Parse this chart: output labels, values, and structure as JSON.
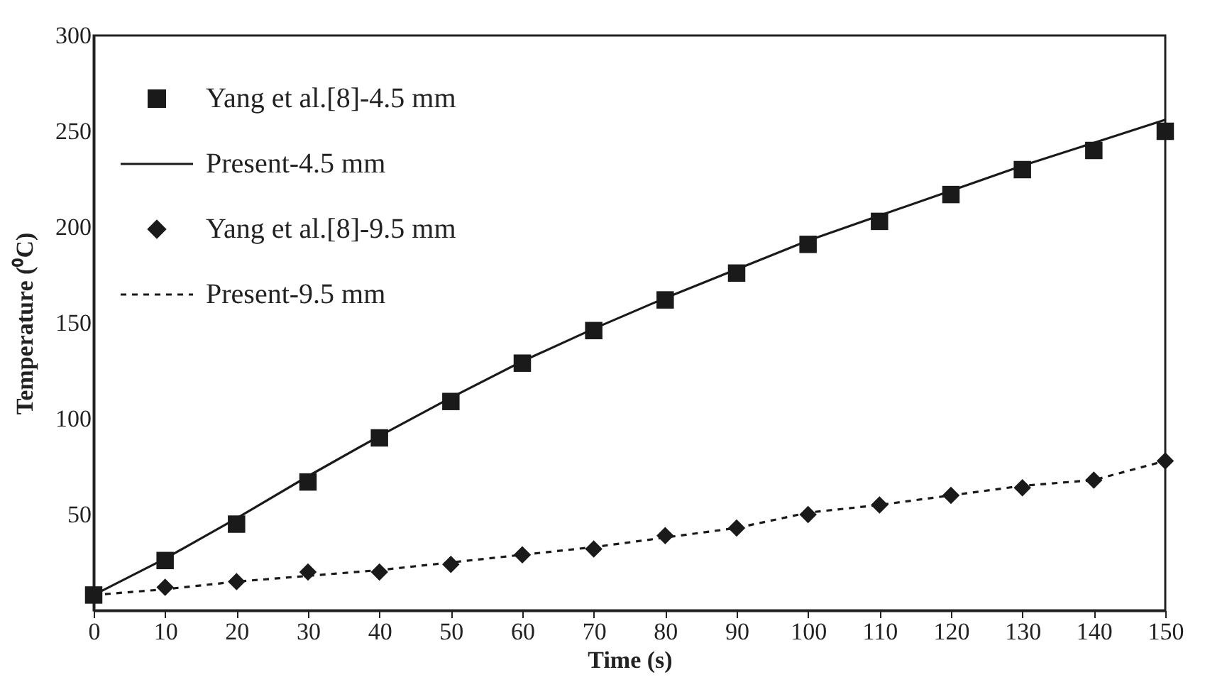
{
  "chart_data": {
    "type": "line",
    "xlabel": "Time (s)",
    "ylabel": "Temperature (⁰C)",
    "x": [
      0,
      10,
      20,
      30,
      40,
      50,
      60,
      70,
      80,
      90,
      100,
      110,
      120,
      130,
      140,
      150
    ],
    "series": [
      {
        "name": "Yang et al.[8]-4.5 mm",
        "type": "scatter",
        "marker": "square",
        "color": "#1a1a1a",
        "values": [
          8,
          26,
          45,
          67,
          90,
          109,
          129,
          146,
          162,
          176,
          191,
          203,
          217,
          230,
          240,
          250
        ]
      },
      {
        "name": "Present-4.5 mm",
        "line_style": "solid",
        "color": "#1a1a1a",
        "values": [
          8,
          27,
          48,
          70,
          91,
          111,
          130,
          147,
          163,
          178,
          193,
          206,
          219,
          232,
          244,
          256
        ]
      },
      {
        "name": "Yang et al.[8]-9.5 mm",
        "type": "scatter",
        "marker": "diamond",
        "color": "#1a1a1a",
        "values": [
          null,
          12,
          15,
          20,
          20,
          24,
          29,
          32,
          39,
          43,
          50,
          55,
          60,
          64,
          68,
          78
        ]
      },
      {
        "name": "Present-9.5 mm",
        "line_style": "dashed",
        "color": "#1a1a1a",
        "values": [
          8,
          11,
          15,
          18,
          21,
          25,
          29,
          33,
          38,
          43,
          51,
          55,
          60,
          65,
          68,
          78
        ]
      }
    ],
    "xlim": [
      0,
      150
    ],
    "xticks": [
      0,
      10,
      20,
      30,
      40,
      50,
      60,
      70,
      80,
      90,
      100,
      110,
      120,
      130,
      140,
      150
    ],
    "ylim": [
      0,
      300
    ],
    "yticks": [
      50,
      100,
      150,
      200,
      250,
      300
    ],
    "grid": false,
    "legend": "top left"
  }
}
